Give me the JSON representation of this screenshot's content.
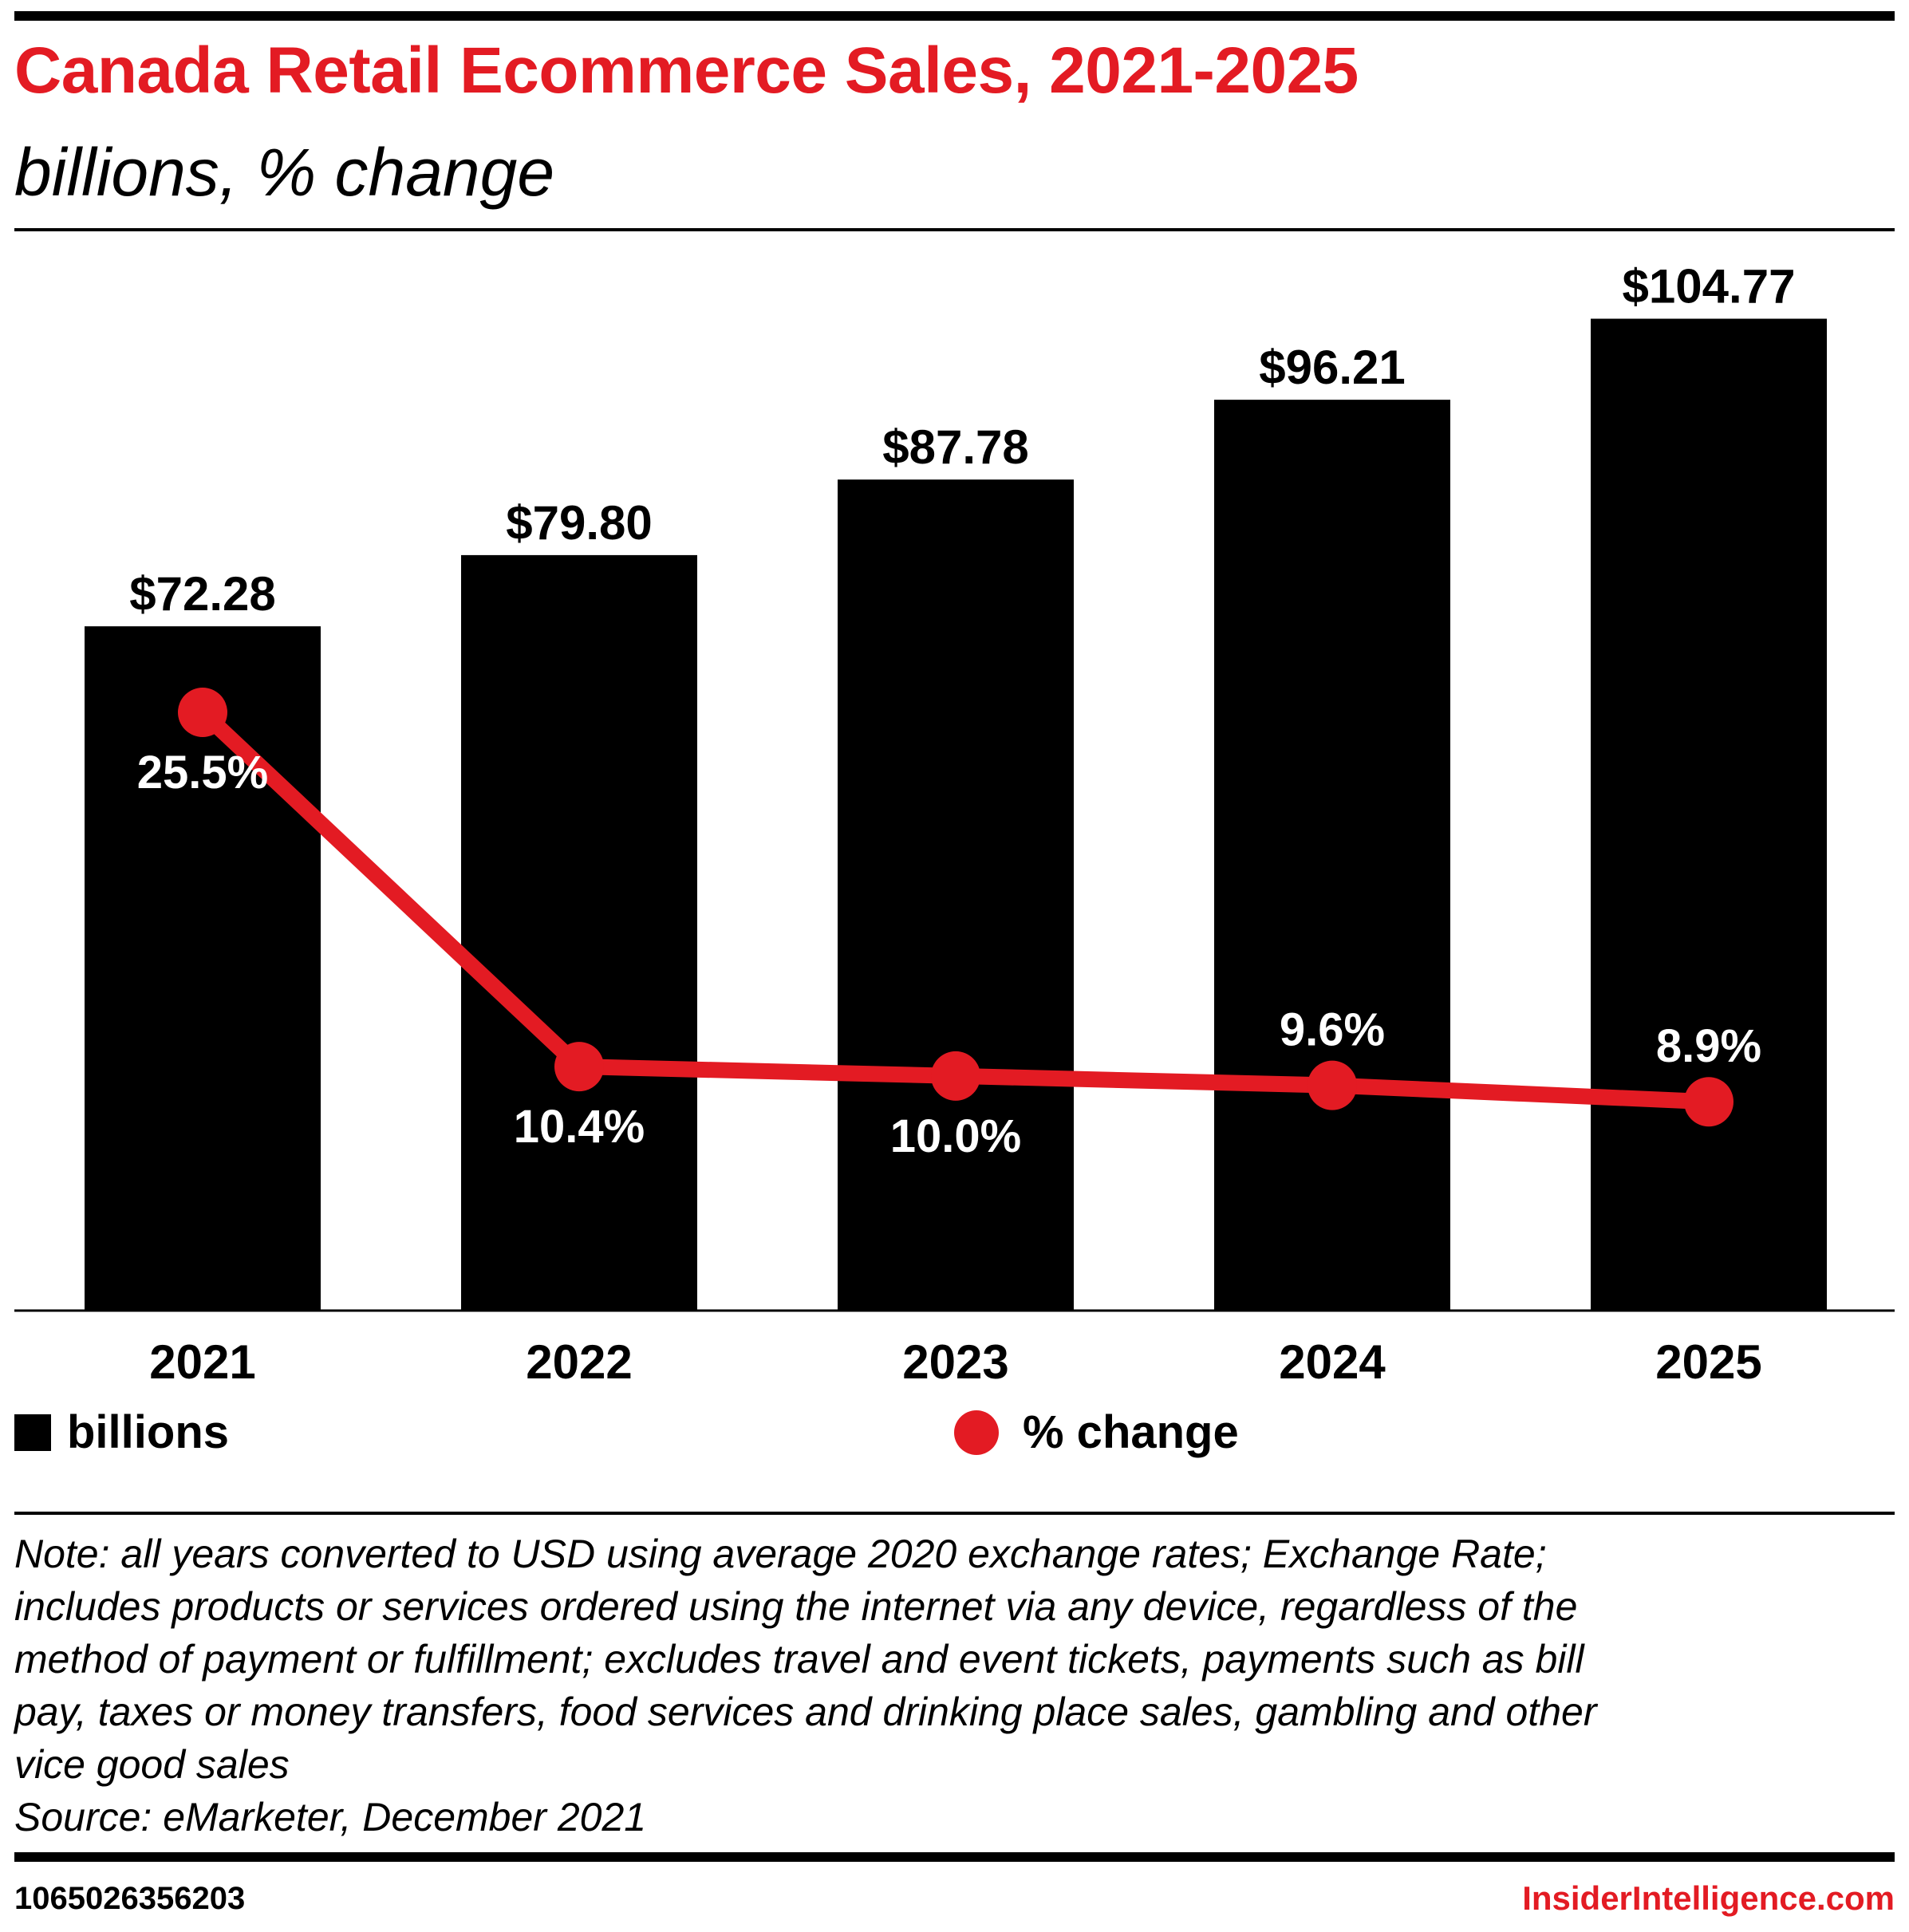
{
  "header": {
    "title": "Canada Retail Ecommerce Sales, 2021-2025",
    "subtitle": "billions, % change"
  },
  "chart_data": {
    "type": "bar",
    "title": "Canada Retail Ecommerce Sales, 2021-2025",
    "subtitle": "billions, % change",
    "categories": [
      "2021",
      "2022",
      "2023",
      "2024",
      "2025"
    ],
    "series": [
      {
        "name": "billions",
        "type": "bar",
        "values": [
          72.28,
          79.8,
          87.78,
          96.21,
          104.77
        ],
        "labels": [
          "$72.28",
          "$79.80",
          "$87.78",
          "$96.21",
          "$104.77"
        ],
        "color": "#000000"
      },
      {
        "name": "% change",
        "type": "line",
        "values": [
          25.5,
          10.4,
          10.0,
          9.6,
          8.9
        ],
        "labels": [
          "25.5%",
          "10.4%",
          "10.0%",
          "9.6%",
          "8.9%"
        ],
        "label_position": [
          "below",
          "below",
          "below",
          "above",
          "above"
        ],
        "color": "#e31b23"
      }
    ],
    "bar_ylim": [
      0,
      114
    ],
    "line_ylim": [
      0,
      46
    ],
    "xlabel": "",
    "ylabel": "",
    "grid": false,
    "legend": "bottom"
  },
  "legend": {
    "bars_label": "billions",
    "line_label": "% change"
  },
  "note": [
    "Note: all years converted to USD using average 2020 exchange rates; Exchange Rate;",
    "includes products or services ordered using the internet via any device, regardless of the",
    "method of payment or fulfillment; excludes travel and event tickets, payments such as bill",
    "pay, taxes or money transfers, food services and drinking place sales, gambling and other",
    "vice good sales",
    "Source: eMarketer, December 2021"
  ],
  "footer": {
    "chart_id": "1065026356203",
    "brand": "InsiderIntelligence.com"
  }
}
